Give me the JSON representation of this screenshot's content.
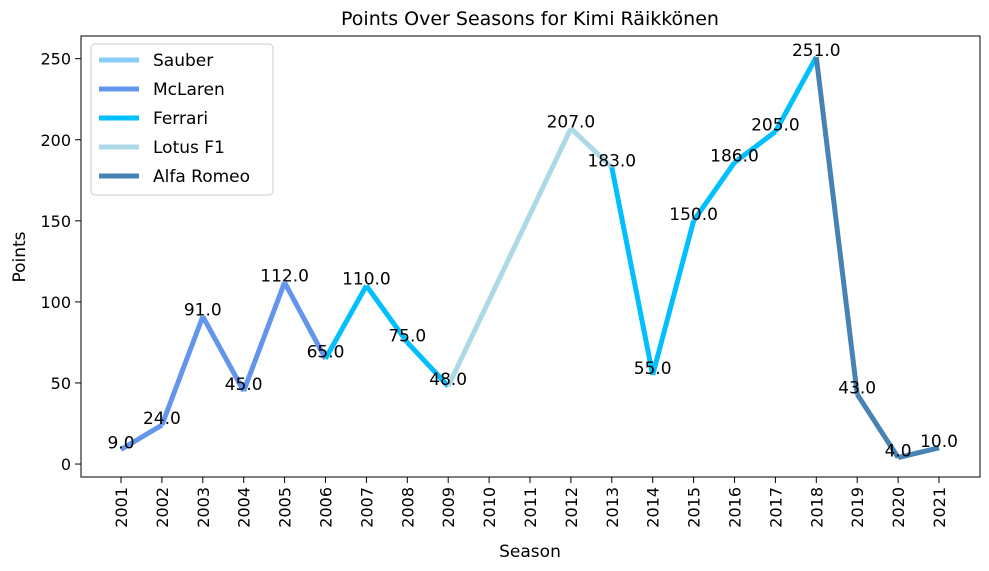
{
  "chart_data": {
    "type": "line",
    "title": "Points Over Seasons for Kimi Räikkönen",
    "xlabel": "Season",
    "ylabel": "Points",
    "ylim": [
      -8,
      264
    ],
    "yticks": [
      0,
      50,
      100,
      150,
      200,
      250
    ],
    "x": [
      "2001",
      "2002",
      "2003",
      "2004",
      "2005",
      "2006",
      "2007",
      "2008",
      "2009",
      "2010",
      "2011",
      "2012",
      "2013",
      "2014",
      "2015",
      "2016",
      "2017",
      "2018",
      "2019",
      "2020",
      "2021"
    ],
    "points": [
      {
        "season": "2001",
        "points": 9.0,
        "team": "Sauber",
        "label": "9.0"
      },
      {
        "season": "2002",
        "points": 24.0,
        "team": "McLaren",
        "label": "24.0"
      },
      {
        "season": "2003",
        "points": 91.0,
        "team": "McLaren",
        "label": "91.0"
      },
      {
        "season": "2004",
        "points": 45.0,
        "team": "McLaren",
        "label": "45.0"
      },
      {
        "season": "2005",
        "points": 112.0,
        "team": "McLaren",
        "label": "112.0"
      },
      {
        "season": "2006",
        "points": 65.0,
        "team": "McLaren",
        "label": "65.0"
      },
      {
        "season": "2007",
        "points": 110.0,
        "team": "Ferrari",
        "label": "110.0"
      },
      {
        "season": "2008",
        "points": 75.0,
        "team": "Ferrari",
        "label": "75.0"
      },
      {
        "season": "2009",
        "points": 48.0,
        "team": "Ferrari",
        "label": "48.0"
      },
      {
        "season": "2012",
        "points": 207.0,
        "team": "Lotus F1",
        "label": "207.0"
      },
      {
        "season": "2013",
        "points": 183.0,
        "team": "Lotus F1",
        "label": "183.0"
      },
      {
        "season": "2014",
        "points": 55.0,
        "team": "Ferrari",
        "label": "55.0"
      },
      {
        "season": "2015",
        "points": 150.0,
        "team": "Ferrari",
        "label": "150.0"
      },
      {
        "season": "2016",
        "points": 186.0,
        "team": "Ferrari",
        "label": "186.0"
      },
      {
        "season": "2017",
        "points": 205.0,
        "team": "Ferrari",
        "label": "205.0"
      },
      {
        "season": "2018",
        "points": 251.0,
        "team": "Ferrari",
        "label": "251.0"
      },
      {
        "season": "2019",
        "points": 43.0,
        "team": "Alfa Romeo",
        "label": "43.0"
      },
      {
        "season": "2020",
        "points": 4.0,
        "team": "Alfa Romeo",
        "label": "4.0"
      },
      {
        "season": "2021",
        "points": 10.0,
        "team": "Alfa Romeo",
        "label": "10.0"
      }
    ],
    "series": [
      {
        "name": "Sauber",
        "color": "#87CEFA"
      },
      {
        "name": "McLaren",
        "color": "#6495ED"
      },
      {
        "name": "Ferrari",
        "color": "#00BFFF"
      },
      {
        "name": "Lotus F1",
        "color": "#ADD8E6"
      },
      {
        "name": "Alfa Romeo",
        "color": "#4682B4"
      }
    ],
    "legend": {
      "position": "top-left"
    },
    "grid": false
  }
}
